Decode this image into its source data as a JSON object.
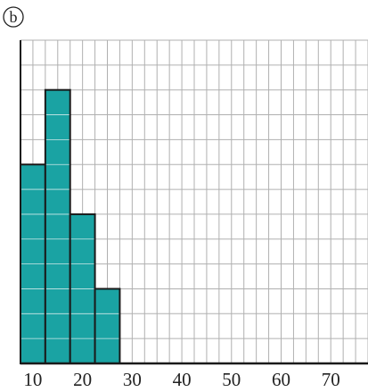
{
  "panel_label": "b",
  "colors": {
    "bar_fill": "#1aa3a3",
    "bar_edge": "#1a1a1a",
    "bar_inner_gridline": "#cfe8e8",
    "grid": "#b0b0b0",
    "axis": "#1a1a1a",
    "text": "#222222"
  },
  "chart_data": {
    "type": "bar",
    "categories": [
      "7.5-12.5",
      "12.5-17.5",
      "17.5-22.5",
      "22.5-27.5"
    ],
    "bins": [
      [
        7.5,
        12.5
      ],
      [
        12.5,
        17.5
      ],
      [
        17.5,
        22.5
      ],
      [
        22.5,
        27.5
      ]
    ],
    "values": [
      8,
      11,
      6,
      3
    ],
    "title": "",
    "xlabel": "",
    "ylabel": "",
    "xlim": [
      7.5,
      77.5
    ],
    "ylim": [
      0,
      13
    ],
    "x_ticks": [
      10,
      20,
      30,
      40,
      50,
      60,
      70
    ],
    "x_tick_labels": [
      "10",
      "20",
      "30",
      "40",
      "50",
      "60",
      "70"
    ],
    "y_tick_labels": [],
    "grid": true,
    "grid_x_step": 2.5,
    "grid_y_step": 1,
    "legend": "none"
  }
}
